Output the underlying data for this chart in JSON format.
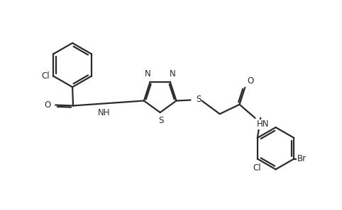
{
  "background_color": "#ffffff",
  "line_color": "#2a2a2a",
  "line_width": 1.6,
  "font_size": 8.5,
  "fig_width": 4.82,
  "fig_height": 2.97,
  "dpi": 100,
  "xlim": [
    0,
    10
  ],
  "ylim": [
    0,
    6.2
  ]
}
